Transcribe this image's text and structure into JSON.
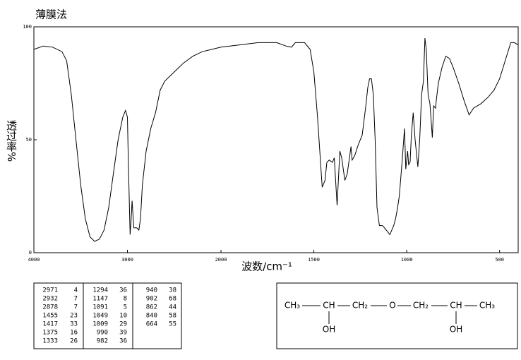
{
  "chart_data": {
    "type": "line",
    "title": "薄膜法",
    "x_label": "波数/cm⁻¹",
    "y_label": "透过率%",
    "xlim": [
      4000,
      400
    ],
    "xticks": [
      4000,
      3000,
      2000,
      1500,
      1000,
      500
    ],
    "xscale": {
      "type": "piecewise",
      "breaks": [
        2000
      ]
    },
    "ylim": [
      0,
      100
    ],
    "yticks": [
      0,
      50,
      100
    ],
    "color": "#000000",
    "x": [
      4000,
      3900,
      3800,
      3700,
      3650,
      3600,
      3550,
      3500,
      3450,
      3400,
      3350,
      3300,
      3250,
      3200,
      3150,
      3100,
      3050,
      3020,
      3000,
      2990,
      2971,
      2960,
      2950,
      2932,
      2900,
      2878,
      2860,
      2840,
      2800,
      2750,
      2700,
      2650,
      2600,
      2500,
      2400,
      2300,
      2200,
      2100,
      2000,
      1900,
      1800,
      1700,
      1650,
      1620,
      1600,
      1550,
      1520,
      1500,
      1480,
      1460,
      1455,
      1440,
      1430,
      1417,
      1400,
      1390,
      1375,
      1360,
      1350,
      1333,
      1320,
      1300,
      1294,
      1280,
      1260,
      1240,
      1220,
      1210,
      1200,
      1190,
      1180,
      1170,
      1160,
      1147,
      1130,
      1110,
      1091,
      1070,
      1060,
      1049,
      1040,
      1025,
      1012,
      1005,
      995,
      990,
      982,
      975,
      965,
      955,
      940,
      930,
      920,
      910,
      902,
      895,
      885,
      875,
      862,
      855,
      845,
      840,
      830,
      810,
      790,
      770,
      750,
      720,
      690,
      664,
      640,
      600,
      560,
      530,
      500,
      470,
      440,
      420,
      400
    ],
    "values": [
      90,
      91.5,
      91,
      89,
      85,
      70,
      50,
      30,
      15,
      7,
      5,
      6,
      10,
      20,
      35,
      50,
      60,
      63,
      60,
      40,
      8,
      15,
      23,
      11,
      11,
      10,
      15,
      30,
      45,
      55,
      62,
      72,
      76,
      80,
      84,
      87,
      89,
      90,
      91,
      92,
      93,
      93,
      91.5,
      91,
      93,
      93,
      90,
      80,
      60,
      35,
      29,
      32,
      40,
      41,
      40,
      42,
      21,
      45,
      42,
      32,
      35,
      47,
      41,
      43,
      48,
      52,
      65,
      73,
      77,
      77,
      70,
      50,
      20,
      12,
      12,
      10,
      8,
      12,
      15,
      20,
      25,
      40,
      55,
      37,
      45,
      39,
      40,
      52,
      62,
      50,
      38,
      50,
      70,
      76,
      95,
      90,
      70,
      66,
      51,
      65,
      64,
      68,
      75,
      82,
      87,
      86,
      82,
      75,
      67,
      61,
      64,
      66,
      69,
      72,
      77,
      85,
      93,
      93,
      92
    ]
  },
  "peak_table": {
    "columns": [
      [
        [
          2971,
          4
        ],
        [
          2932,
          7
        ],
        [
          2878,
          7
        ],
        [
          1455,
          23
        ],
        [
          1417,
          33
        ],
        [
          1375,
          16
        ],
        [
          1333,
          26
        ]
      ],
      [
        [
          1294,
          36
        ],
        [
          1147,
          8
        ],
        [
          1091,
          5
        ],
        [
          1049,
          10
        ],
        [
          1009,
          29
        ],
        [
          990,
          39
        ],
        [
          982,
          36
        ]
      ],
      [
        [
          940,
          38
        ],
        [
          902,
          68
        ],
        [
          862,
          44
        ],
        [
          840,
          58
        ],
        [
          664,
          55
        ]
      ]
    ]
  },
  "structure": {
    "chain": [
      "CH₃",
      "CH",
      "CH₂",
      "O",
      "CH₂",
      "CH",
      "CH₃"
    ],
    "substituents": [
      "OH",
      "OH"
    ]
  }
}
